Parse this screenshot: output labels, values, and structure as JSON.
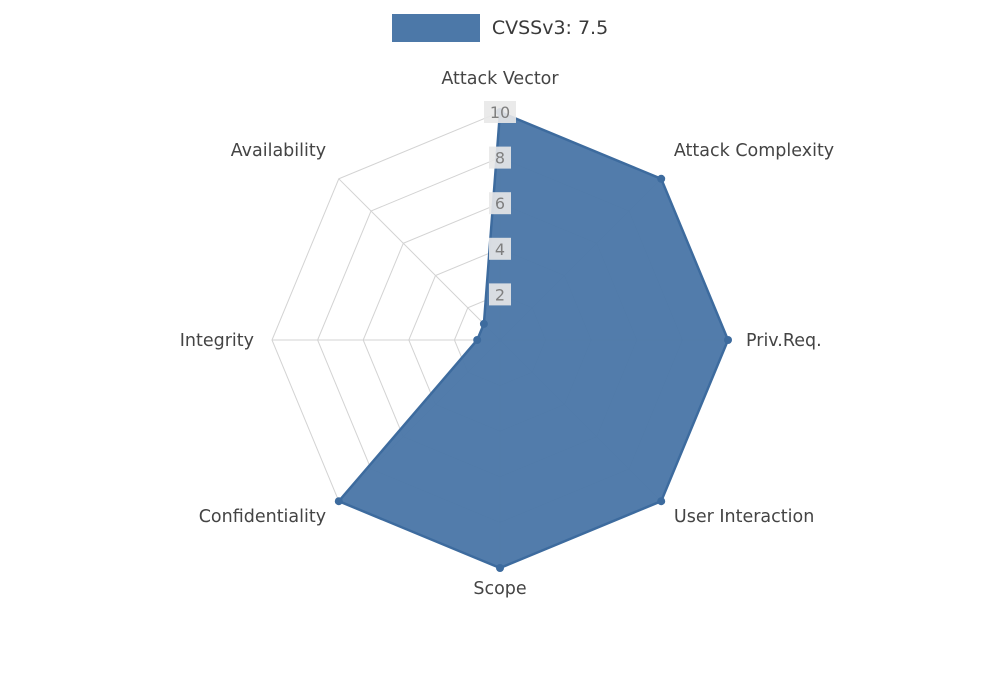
{
  "legend": {
    "label": "CVSSv3: 7.5",
    "swatch_color": "#4c78a8"
  },
  "chart_data": {
    "type": "radar",
    "title": "",
    "categories": [
      "Attack Vector",
      "Attack Complexity",
      "Priv.Req.",
      "User Interaction",
      "Scope",
      "Confidentiality",
      "Integrity",
      "Availability"
    ],
    "series": [
      {
        "name": "CVSSv3: 7.5",
        "values": [
          10,
          10,
          10,
          10,
          10,
          10,
          1,
          1
        ]
      }
    ],
    "radial_axis": {
      "min": 0,
      "max": 10,
      "ticks": [
        2,
        4,
        6,
        8,
        10
      ]
    },
    "start_angle_deg": 90,
    "direction": "clockwise",
    "grid": true,
    "legend_position": "top-center",
    "colors": {
      "fill": "#4c78a8",
      "line": "#3d6b9e",
      "grid": "#d3d3d3",
      "axis_label": "#444444",
      "tick_label": "#7f7f7f",
      "tick_bg": "#e8e8e8",
      "background": "#ffffff"
    }
  }
}
